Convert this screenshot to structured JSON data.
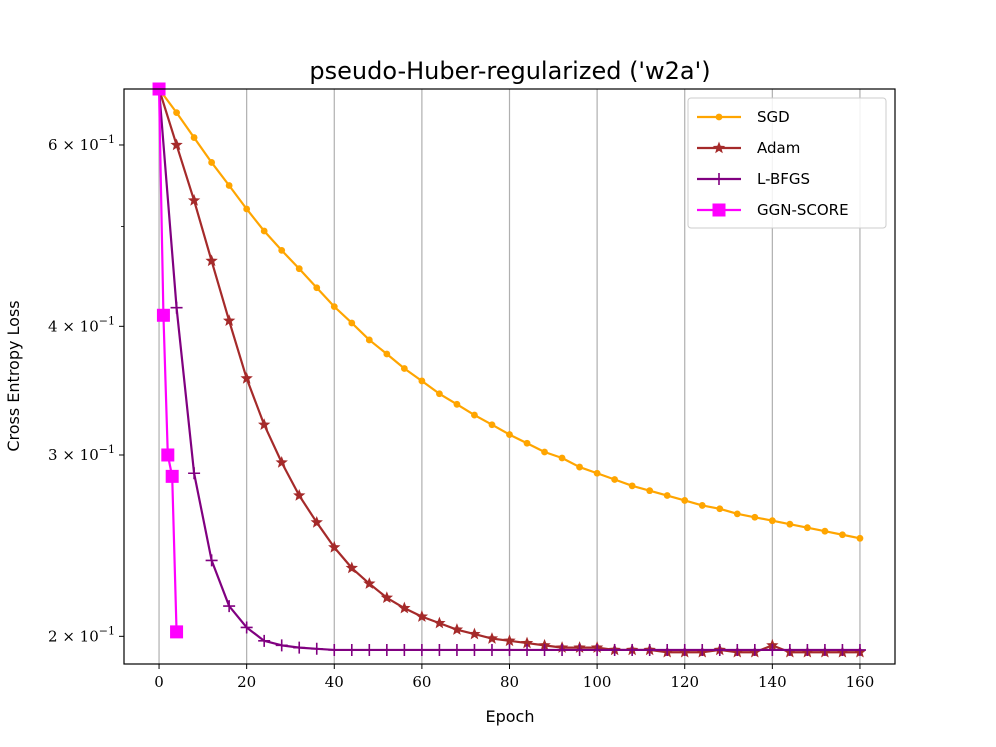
{
  "chart_data": {
    "type": "line",
    "title": "pseudo-Huber-regularized ('w2a')",
    "xlabel": "Epoch",
    "ylabel": "Cross Entropy Loss",
    "xlim": [
      -8,
      168
    ],
    "ylim": [
      0.188,
      0.68
    ],
    "yscale": "log",
    "grid": "vertical",
    "legend_position": "top-right",
    "x_ticks": [
      0,
      20,
      40,
      60,
      80,
      100,
      120,
      140,
      160
    ],
    "x_tick_labels": [
      "0",
      "20",
      "40",
      "60",
      "80",
      "100",
      "120",
      "140",
      "160"
    ],
    "y_ticks": [
      {
        "value": 0.2,
        "mant": "2",
        "exp": "−1"
      },
      {
        "value": 0.3,
        "mant": "3",
        "exp": "−1"
      },
      {
        "value": 0.4,
        "mant": "4",
        "exp": "−1"
      },
      {
        "value": 0.6,
        "mant": "6",
        "exp": "−1"
      }
    ],
    "series": [
      {
        "name": "SGD",
        "color": "#ffa500",
        "marker": "circle",
        "x": [
          0,
          4,
          8,
          12,
          16,
          20,
          24,
          28,
          32,
          36,
          40,
          44,
          48,
          52,
          56,
          60,
          64,
          68,
          72,
          76,
          80,
          84,
          88,
          92,
          96,
          100,
          104,
          108,
          112,
          116,
          120,
          124,
          128,
          132,
          136,
          140,
          144,
          148,
          152,
          156,
          160
        ],
        "values": [
          0.68,
          0.645,
          0.61,
          0.577,
          0.548,
          0.52,
          0.495,
          0.474,
          0.455,
          0.436,
          0.418,
          0.403,
          0.388,
          0.376,
          0.364,
          0.354,
          0.344,
          0.336,
          0.328,
          0.321,
          0.314,
          0.308,
          0.302,
          0.298,
          0.292,
          0.288,
          0.284,
          0.28,
          0.277,
          0.274,
          0.271,
          0.268,
          0.266,
          0.263,
          0.261,
          0.259,
          0.257,
          0.255,
          0.253,
          0.251,
          0.249
        ]
      },
      {
        "name": "Adam",
        "color": "#a52a2a",
        "marker": "star",
        "x": [
          0,
          4,
          8,
          12,
          16,
          20,
          24,
          28,
          32,
          36,
          40,
          44,
          48,
          52,
          56,
          60,
          64,
          68,
          72,
          76,
          80,
          84,
          88,
          92,
          96,
          100,
          104,
          108,
          112,
          116,
          120,
          124,
          128,
          132,
          136,
          140,
          144,
          148,
          152,
          156,
          160
        ],
        "values": [
          0.68,
          0.6,
          0.53,
          0.463,
          0.405,
          0.356,
          0.321,
          0.295,
          0.274,
          0.258,
          0.244,
          0.233,
          0.225,
          0.218,
          0.213,
          0.209,
          0.206,
          0.203,
          0.201,
          0.199,
          0.198,
          0.197,
          0.196,
          0.195,
          0.195,
          0.195,
          0.194,
          0.194,
          0.194,
          0.193,
          0.193,
          0.193,
          0.194,
          0.193,
          0.193,
          0.196,
          0.193,
          0.193,
          0.193,
          0.193,
          0.193
        ]
      },
      {
        "name": "L-BFGS",
        "color": "#800080",
        "marker": "plus",
        "x": [
          0,
          4,
          8,
          12,
          16,
          20,
          24,
          28,
          32,
          36,
          40,
          44,
          48,
          52,
          56,
          60,
          64,
          68,
          72,
          76,
          80,
          84,
          88,
          92,
          96,
          100,
          104,
          108,
          112,
          116,
          120,
          124,
          128,
          132,
          136,
          140,
          144,
          148,
          152,
          156,
          160
        ],
        "values": [
          0.68,
          0.417,
          0.288,
          0.237,
          0.214,
          0.204,
          0.198,
          0.196,
          0.195,
          0.1945,
          0.194,
          0.194,
          0.194,
          0.194,
          0.194,
          0.194,
          0.194,
          0.194,
          0.194,
          0.194,
          0.194,
          0.194,
          0.194,
          0.194,
          0.194,
          0.194,
          0.194,
          0.194,
          0.194,
          0.194,
          0.194,
          0.194,
          0.194,
          0.194,
          0.194,
          0.194,
          0.194,
          0.194,
          0.194,
          0.194,
          0.194
        ]
      },
      {
        "name": "GGN-SCORE",
        "color": "#ff00ff",
        "marker": "square",
        "x": [
          0,
          1,
          2,
          3,
          4
        ],
        "values": [
          0.68,
          0.41,
          0.3,
          0.286,
          0.202
        ]
      }
    ]
  }
}
